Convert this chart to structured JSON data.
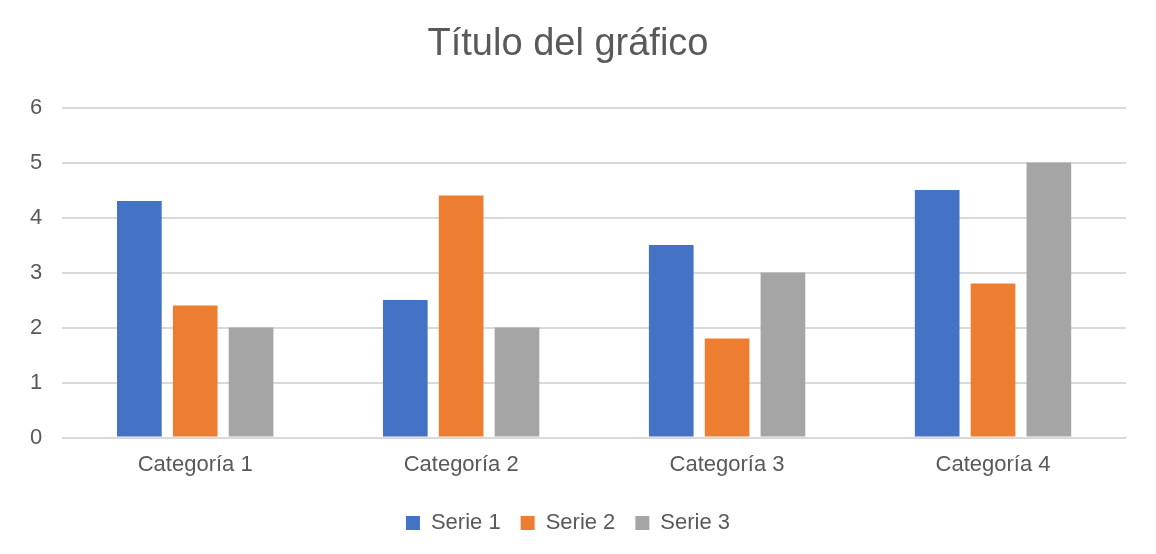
{
  "chart_data": {
    "type": "bar",
    "title": "Título del gráfico",
    "categories": [
      "Categoría 1",
      "Categoría 2",
      "Categoría 3",
      "Categoría 4"
    ],
    "series": [
      {
        "name": "Serie 1",
        "color": "#4472c4",
        "values": [
          4.3,
          2.5,
          3.5,
          4.5
        ]
      },
      {
        "name": "Serie 2",
        "color": "#ed7d31",
        "values": [
          2.4,
          4.4,
          1.8,
          2.8
        ]
      },
      {
        "name": "Serie 3",
        "color": "#a5a5a5",
        "values": [
          2,
          2,
          3,
          5
        ]
      }
    ],
    "ylim": [
      0,
      6
    ],
    "yticks": [
      0,
      1,
      2,
      3,
      4,
      5,
      6
    ],
    "grid": "y",
    "legend": "bottom"
  }
}
